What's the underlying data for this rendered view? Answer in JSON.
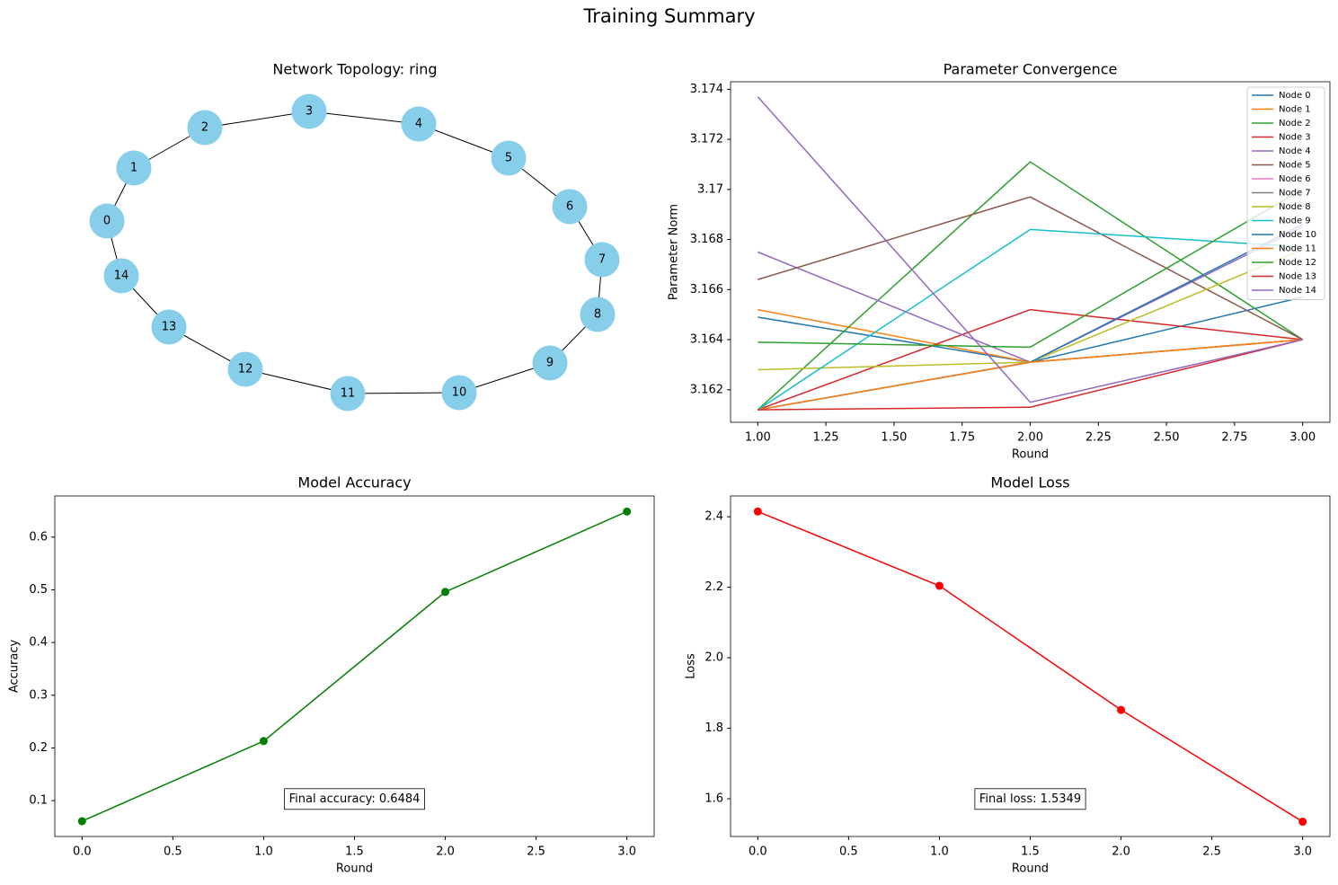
{
  "title": "Training Summary",
  "chart_data": [
    {
      "type": "network",
      "title": "Network Topology: ring",
      "node_color": "#87ceeb",
      "nodes": [
        "0",
        "1",
        "2",
        "3",
        "4",
        "5",
        "6",
        "7",
        "8",
        "9",
        "10",
        "11",
        "12",
        "13",
        "14"
      ]
    },
    {
      "type": "line",
      "title": "Parameter Convergence",
      "x_label": "Round",
      "y_label": "Parameter Norm",
      "x": [
        1,
        2,
        3
      ],
      "xlim": [
        0.9,
        3.1
      ],
      "ylim": [
        3.1607,
        3.1743
      ],
      "xticks": [
        {
          "value": 1,
          "label": "1.00"
        },
        {
          "value": 1.25,
          "label": "1.25"
        },
        {
          "value": 1.5,
          "label": "1.50"
        },
        {
          "value": 1.75,
          "label": "1.75"
        },
        {
          "value": 2,
          "label": "2.00"
        },
        {
          "value": 2.25,
          "label": "2.25"
        },
        {
          "value": 2.5,
          "label": "2.50"
        },
        {
          "value": 2.75,
          "label": "2.75"
        },
        {
          "value": 3,
          "label": "3.00"
        }
      ],
      "yticks": [
        3.162,
        3.164,
        3.166,
        3.168,
        3.17,
        {
          "value": 3.172,
          "label": "3.172"
        },
        3.174
      ],
      "legend": "upper right",
      "markers": false,
      "series": [
        {
          "name": "Node 0",
          "color": "#1f77b4",
          "values": [
            3.1649,
            3.1631,
            3.1657
          ]
        },
        {
          "name": "Node 1",
          "color": "#ff7f0e",
          "values": [
            3.1652,
            3.1631,
            3.164
          ]
        },
        {
          "name": "Node 2",
          "color": "#2ca02c",
          "values": [
            3.1612,
            3.1711,
            3.164
          ]
        },
        {
          "name": "Node 3",
          "color": "#d62728",
          "values": [
            3.1612,
            3.1652,
            3.164
          ]
        },
        {
          "name": "Node 4",
          "color": "#9467bd",
          "values": [
            3.1675,
            3.1631,
            3.1685
          ]
        },
        {
          "name": "Node 5",
          "color": "#8c564b",
          "values": [
            3.1664,
            3.1697,
            3.164
          ]
        },
        {
          "name": "Node 6",
          "color": "#e377c2",
          "values": [
            3.1612,
            3.1631,
            3.164
          ]
        },
        {
          "name": "Node 7",
          "color": "#7f7f7f",
          "values": [
            3.1612,
            3.1631,
            3.164
          ]
        },
        {
          "name": "Node 8",
          "color": "#bcbd22",
          "values": [
            3.1628,
            3.1631,
            3.1676
          ]
        },
        {
          "name": "Node 9",
          "color": "#17becf",
          "values": [
            3.1612,
            3.1684,
            3.1677
          ]
        },
        {
          "name": "Node 10",
          "color": "#1f77b4",
          "values": [
            3.1612,
            3.1631,
            3.1686
          ]
        },
        {
          "name": "Node 11",
          "color": "#ff7f0e",
          "values": [
            3.1612,
            3.1631,
            3.164
          ]
        },
        {
          "name": "Node 12",
          "color": "#2ca02c",
          "values": [
            3.1639,
            3.1637,
            3.17
          ]
        },
        {
          "name": "Node 13",
          "color": "#d62728",
          "values": [
            3.1612,
            3.1613,
            3.164
          ]
        },
        {
          "name": "Node 14",
          "color": "#9467bd",
          "values": [
            3.1737,
            3.1615,
            3.164
          ]
        }
      ]
    },
    {
      "type": "line",
      "title": "Model Accuracy",
      "x_label": "Round",
      "y_label": "Accuracy",
      "x": [
        0,
        1,
        2,
        3
      ],
      "xlim": [
        -0.15,
        3.15
      ],
      "ylim": [
        0.032,
        0.678
      ],
      "xticks": [
        {
          "value": 0,
          "label": "0.0"
        },
        0.5,
        {
          "value": 1,
          "label": "1.0"
        },
        1.5,
        {
          "value": 2,
          "label": "2.0"
        },
        2.5,
        {
          "value": 3,
          "label": "3.0"
        }
      ],
      "yticks": [
        0.1,
        0.2,
        0.3,
        0.4,
        0.5,
        0.6
      ],
      "markers": true,
      "series": [
        {
          "color": "#008000",
          "values": [
            0.061,
            0.213,
            0.496,
            0.6484
          ]
        }
      ],
      "annotation": "Final accuracy: 0.6484"
    },
    {
      "type": "line",
      "title": "Model Loss",
      "x_label": "Round",
      "y_label": "Loss",
      "x": [
        0,
        1,
        2,
        3
      ],
      "xlim": [
        -0.15,
        3.15
      ],
      "ylim": [
        1.493,
        2.459
      ],
      "xticks": [
        {
          "value": 0,
          "label": "0.0"
        },
        0.5,
        {
          "value": 1,
          "label": "1.0"
        },
        1.5,
        {
          "value": 2,
          "label": "2.0"
        },
        2.5,
        {
          "value": 3,
          "label": "3.0"
        }
      ],
      "yticks": [
        1.6,
        1.8,
        {
          "value": 2,
          "label": "2.0"
        },
        2.2,
        2.4
      ],
      "markers": true,
      "series": [
        {
          "color": "#ff0000",
          "values": [
            2.415,
            2.204,
            1.852,
            1.5349
          ]
        }
      ],
      "annotation": "Final loss: 1.5349"
    }
  ]
}
